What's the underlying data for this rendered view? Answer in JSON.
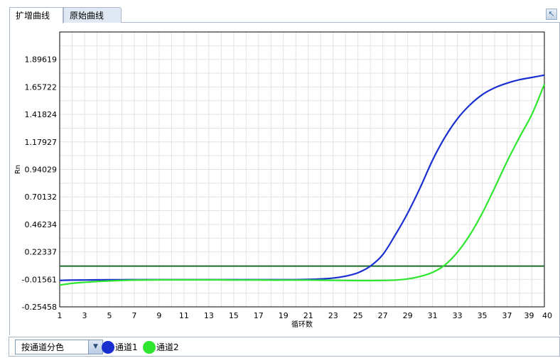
{
  "tabs": [
    {
      "label": "扩增曲线",
      "active": true
    },
    {
      "label": "原始曲线",
      "active": false
    }
  ],
  "corner_button_icon": "expand-arrow-icon",
  "bottom": {
    "color_mode_select": "按通道分色",
    "legend": [
      {
        "label": "通道1",
        "color": "#1a2fd0"
      },
      {
        "label": "通道2",
        "color": "#2ee62e"
      }
    ]
  },
  "chart_data": {
    "type": "line",
    "xlabel": "循环数",
    "ylabel": "Rn",
    "x_ticks": [
      1,
      3,
      5,
      7,
      9,
      11,
      13,
      15,
      17,
      19,
      21,
      23,
      25,
      27,
      29,
      31,
      33,
      35,
      37,
      39,
      40
    ],
    "y_ticks": [
      "-0.25458",
      "-0.01561",
      "0.22337",
      "0.46234",
      "0.70132",
      "0.94029",
      "1.17927",
      "1.41824",
      "1.65722",
      "1.89619"
    ],
    "xlim": [
      1,
      40
    ],
    "ylim": [
      -0.25458,
      2.13516
    ],
    "grid": true,
    "threshold": {
      "value": 0.1,
      "color": "#1e6b2a"
    },
    "series": [
      {
        "name": "通道1",
        "color": "#1a2fd0",
        "x": [
          1,
          2,
          3,
          4,
          5,
          6,
          7,
          8,
          9,
          10,
          11,
          12,
          13,
          14,
          15,
          16,
          17,
          18,
          19,
          20,
          21,
          22,
          23,
          24,
          25,
          26,
          27,
          28,
          29,
          30,
          31,
          32,
          33,
          34,
          35,
          36,
          37,
          38,
          39,
          40
        ],
        "y": [
          -0.025,
          -0.022,
          -0.021,
          -0.02,
          -0.019,
          -0.019,
          -0.018,
          -0.018,
          -0.018,
          -0.018,
          -0.018,
          -0.018,
          -0.018,
          -0.018,
          -0.018,
          -0.018,
          -0.018,
          -0.018,
          -0.018,
          -0.018,
          -0.016,
          -0.012,
          -0.004,
          0.012,
          0.042,
          0.1,
          0.2,
          0.37,
          0.56,
          0.78,
          1.02,
          1.22,
          1.38,
          1.5,
          1.59,
          1.65,
          1.69,
          1.72,
          1.74,
          1.76
        ]
      },
      {
        "name": "通道2",
        "color": "#2ee62e",
        "x": [
          1,
          2,
          3,
          4,
          5,
          6,
          7,
          8,
          9,
          10,
          11,
          12,
          13,
          14,
          15,
          16,
          17,
          18,
          19,
          20,
          21,
          22,
          23,
          24,
          25,
          26,
          27,
          28,
          29,
          30,
          31,
          32,
          33,
          34,
          35,
          36,
          37,
          38,
          39,
          40
        ],
        "y": [
          -0.065,
          -0.05,
          -0.041,
          -0.034,
          -0.029,
          -0.025,
          -0.022,
          -0.021,
          -0.02,
          -0.02,
          -0.02,
          -0.02,
          -0.02,
          -0.02,
          -0.021,
          -0.021,
          -0.021,
          -0.022,
          -0.022,
          -0.022,
          -0.022,
          -0.023,
          -0.024,
          -0.025,
          -0.026,
          -0.026,
          -0.025,
          -0.022,
          -0.012,
          0.01,
          0.045,
          0.11,
          0.22,
          0.37,
          0.56,
          0.78,
          1.01,
          1.22,
          1.42,
          1.68
        ]
      }
    ]
  }
}
